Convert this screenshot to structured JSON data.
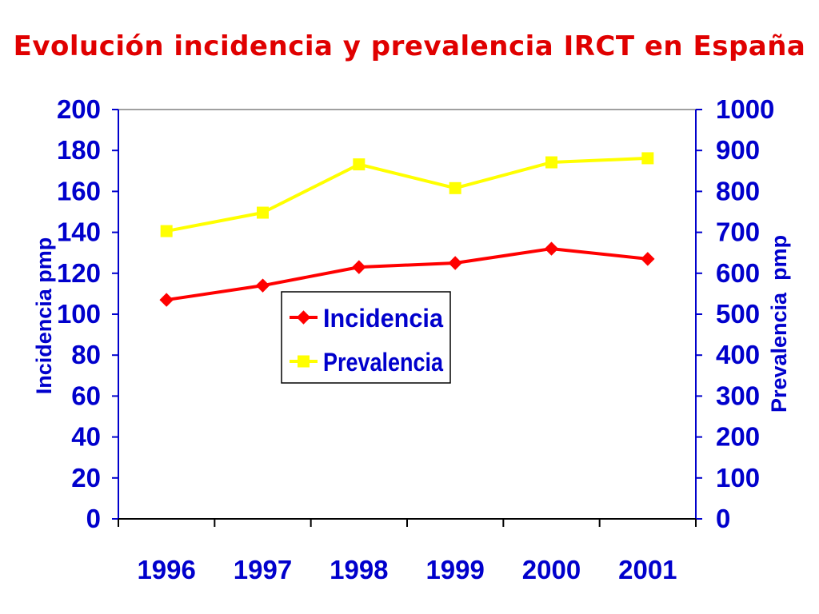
{
  "slide": {
    "title": "Evolución incidencia y prevalencia IRCT en España"
  },
  "colors": {
    "axis": "#0000cc",
    "incidencia": "#ff0000",
    "prevalencia": "#ffff00",
    "title": "#e00000"
  },
  "chart_data": {
    "type": "line",
    "title": "Evolución incidencia y prevalencia IRCT en España",
    "categories": [
      "1996",
      "1997",
      "1998",
      "1999",
      "2000",
      "2001"
    ],
    "series": [
      {
        "name": "Incidencia",
        "axis": "left",
        "marker": "diamond",
        "values": [
          107,
          114,
          123,
          125,
          132,
          127
        ]
      },
      {
        "name": "Prevalencia",
        "axis": "right",
        "marker": "square",
        "values": [
          703,
          748,
          866,
          808,
          871,
          881
        ]
      }
    ],
    "y_left": {
      "label": "Incidencia pmp",
      "ylim": [
        0,
        200
      ],
      "ticks": [
        "0",
        "20",
        "40",
        "60",
        "80",
        "100",
        "120",
        "140",
        "160",
        "180",
        "200"
      ]
    },
    "y_right": {
      "label": "Prevalencia  pmp",
      "ylim": [
        0,
        1000
      ],
      "ticks": [
        "0",
        "100",
        "200",
        "300",
        "400",
        "500",
        "600",
        "700",
        "800",
        "900",
        "1000"
      ]
    },
    "grid": false,
    "legend": {
      "placement": "center",
      "entries": [
        "Incidencia",
        "Prevalencia"
      ]
    }
  }
}
